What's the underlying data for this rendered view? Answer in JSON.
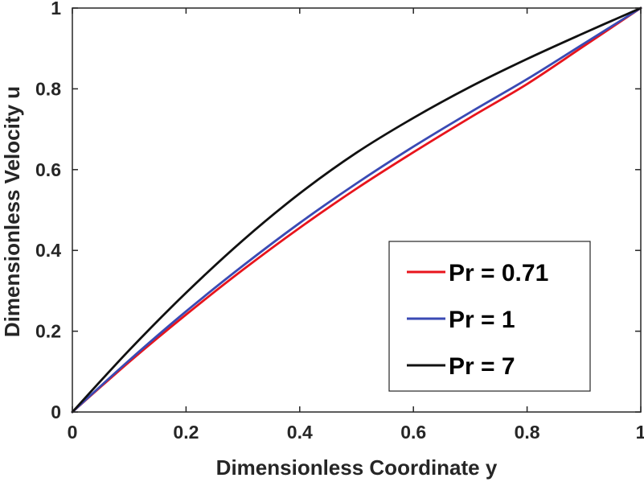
{
  "chart_data": {
    "type": "line",
    "title": "",
    "xlabel": "Dimensionless Coordinate y",
    "ylabel": "Dimensionless Velocity u",
    "xlim": [
      0,
      1
    ],
    "ylim": [
      0,
      1
    ],
    "xticks": [
      0,
      0.2,
      0.4,
      0.6,
      0.8,
      1
    ],
    "yticks": [
      0,
      0.2,
      0.4,
      0.6,
      0.8,
      1
    ],
    "xtick_labels": [
      "0",
      "0.2",
      "0.4",
      "0.6",
      "0.8",
      "1"
    ],
    "ytick_labels": [
      "0",
      "0.2",
      "0.4",
      "0.6",
      "0.8",
      "1"
    ],
    "grid": false,
    "legend_position": "bottom-right",
    "x": [
      0,
      0.1,
      0.2,
      0.3,
      0.4,
      0.5,
      0.6,
      0.7,
      0.8,
      0.9,
      1.0
    ],
    "series": [
      {
        "name": "Pr = 0.71",
        "color": "#e8141c",
        "values": [
          0,
          0.124,
          0.241,
          0.352,
          0.456,
          0.553,
          0.643,
          0.729,
          0.812,
          0.906,
          1.0
        ]
      },
      {
        "name": "Pr = 1",
        "color": "#3a4ab4",
        "values": [
          0,
          0.128,
          0.249,
          0.362,
          0.468,
          0.566,
          0.657,
          0.742,
          0.824,
          0.912,
          1.0
        ]
      },
      {
        "name": "Pr = 7",
        "color": "#111111",
        "values": [
          0,
          0.153,
          0.295,
          0.425,
          0.541,
          0.642,
          0.728,
          0.805,
          0.874,
          0.938,
          1.0
        ]
      }
    ]
  }
}
